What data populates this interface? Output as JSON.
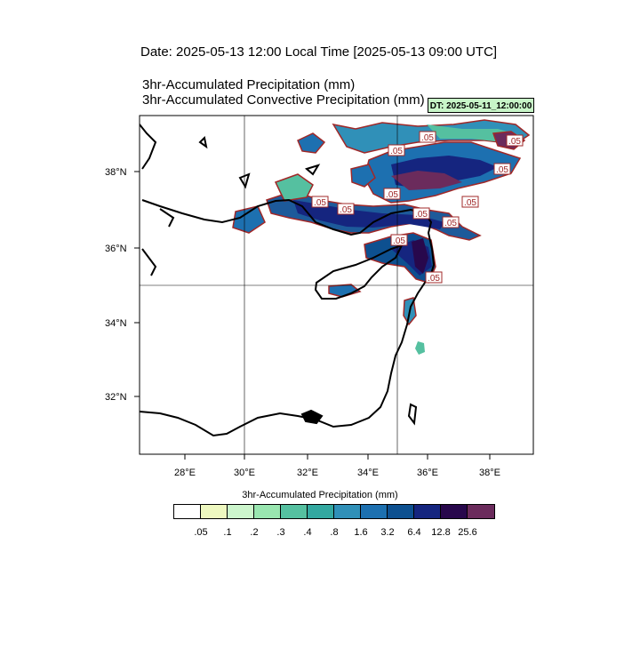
{
  "header": {
    "date_line": "Date: 2025-05-13  12:00 Local Time [2025-05-13  09:00 UTC]",
    "title_line_1": "3hr-Accumulated Precipitation   (mm)",
    "title_line_2": "3hr-Accumulated Convective Precipitation   (mm)",
    "dt_badge": "DT: 2025-05-11_12:00:00"
  },
  "map": {
    "region": "Eastern Mediterranean",
    "lat_labels": [
      "38°N",
      "36°N",
      "34°N",
      "32°N"
    ],
    "lon_labels": [
      "28°E",
      "30°E",
      "32°E",
      "34°E",
      "36°E",
      "38°E"
    ],
    "contour_labels": [
      ".05",
      ".05",
      ".05",
      ".05",
      ".05",
      ".05",
      ".05",
      ".05",
      ".05",
      ".05",
      ".05",
      ".05"
    ],
    "colors": {
      "coast": "#000000",
      "contour": "#a02828",
      "grid": "#000000"
    }
  },
  "colorbar": {
    "title": "3hr-Accumulated Precipitation  (mm)",
    "colors": [
      "#ffffff",
      "#eef8c0",
      "#ccf5cc",
      "#99e6b0",
      "#55c0a0",
      "#33a8a0",
      "#3090b8",
      "#1d70b0",
      "#0d5090",
      "#15257f",
      "#28084c",
      "#6b2b5c"
    ],
    "labels": [
      ".05",
      ".1",
      ".2",
      ".3",
      ".4",
      ".8",
      "1.6",
      "3.2",
      "6.4",
      "12.8",
      "25.6"
    ]
  }
}
